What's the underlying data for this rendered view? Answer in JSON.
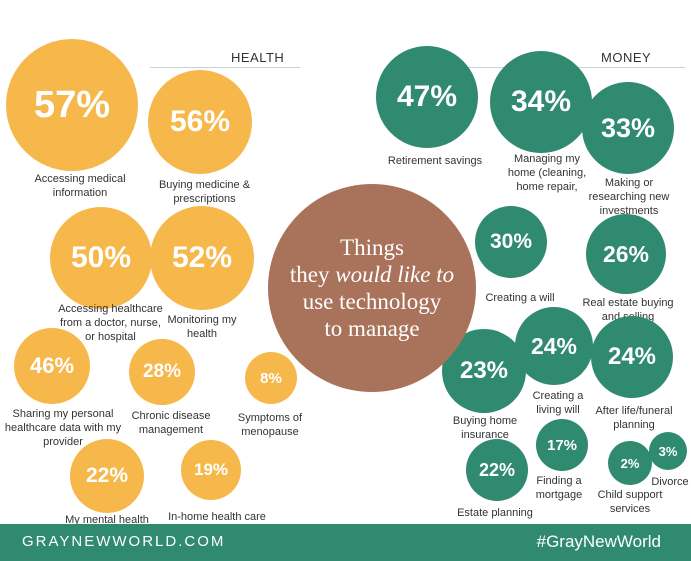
{
  "sections": {
    "health": "HEALTH",
    "money": "MONEY"
  },
  "center": {
    "line1": "Things",
    "line2_prefix": "they ",
    "line2_emph": "would like to",
    "line3": "use technology",
    "line4": "to manage"
  },
  "footer": {
    "site": "GRAYNEWWORLD.COM",
    "hashtag": "#GrayNewWorld"
  },
  "colors": {
    "health": "#f7b84b",
    "money": "#2f8a6f",
    "center": "#a9725a"
  },
  "chart_data": {
    "type": "bubble",
    "groups": [
      {
        "name": "HEALTH",
        "items": [
          {
            "label": "Accessing medical information",
            "value": 57
          },
          {
            "label": "Buying medicine & prescriptions",
            "value": 56
          },
          {
            "label": "Accessing healthcare from a doctor, nurse, or hospital",
            "value": 50
          },
          {
            "label": "Monitoring my health",
            "value": 52
          },
          {
            "label": "Sharing my personal healthcare data with my provider",
            "value": 46
          },
          {
            "label": "Chronic disease management",
            "value": 28
          },
          {
            "label": "Symptoms of menopause",
            "value": 8
          },
          {
            "label": "My mental health",
            "value": 22
          },
          {
            "label": "In-home health care",
            "value": 19
          }
        ]
      },
      {
        "name": "MONEY",
        "items": [
          {
            "label": "Retirement savings",
            "value": 47
          },
          {
            "label": "Managing my home (cleaning, home repair,",
            "value": 34
          },
          {
            "label": "Making or researching new investments",
            "value": 33
          },
          {
            "label": "Creating a will",
            "value": 30
          },
          {
            "label": "Real estate buying and selling",
            "value": 26
          },
          {
            "label": "Creating a living will",
            "value": 24
          },
          {
            "label": "After life/funeral planning",
            "value": 24
          },
          {
            "label": "Buying home insurance",
            "value": 23
          },
          {
            "label": "Finding a mortgage",
            "value": 17
          },
          {
            "label": "Estate planning",
            "value": 22
          },
          {
            "label": "Child support services",
            "value": 2
          },
          {
            "label": "Divorce",
            "value": 3
          }
        ]
      }
    ],
    "value_suffix": "%"
  }
}
